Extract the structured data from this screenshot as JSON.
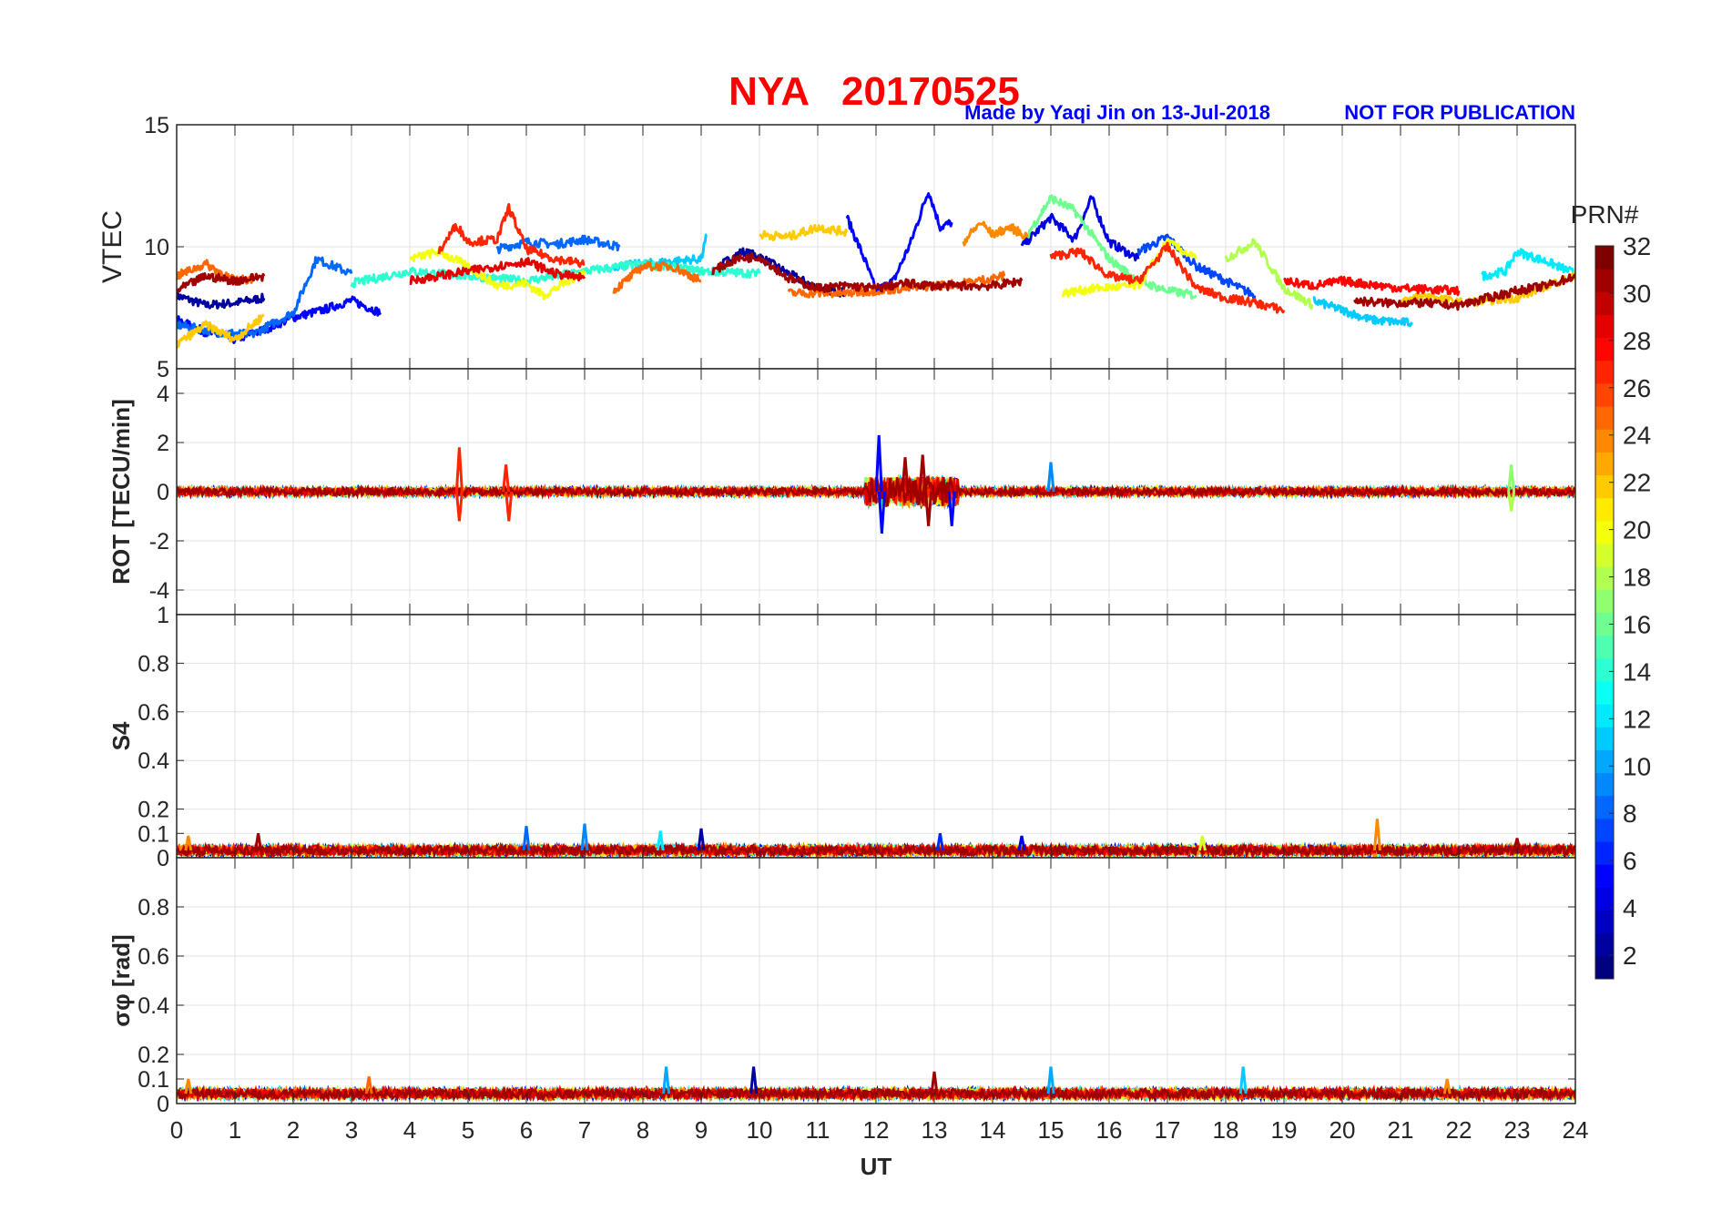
{
  "chart_data": {
    "type": "line",
    "title": "NYA   20170525",
    "credit": "Made by Yaqi Jin on 13-Jul-2018",
    "notice": "NOT FOR PUBLICATION",
    "xlabel": "UT",
    "xlim": [
      0,
      24
    ],
    "xticks": [
      "0",
      "1",
      "2",
      "3",
      "4",
      "5",
      "6",
      "7",
      "8",
      "9",
      "10",
      "11",
      "12",
      "13",
      "14",
      "15",
      "16",
      "17",
      "18",
      "19",
      "20",
      "21",
      "22",
      "23",
      "24"
    ],
    "grid": true,
    "colorbar": {
      "label": "PRN#",
      "range": [
        1,
        32
      ],
      "ticks": [
        "2",
        "4",
        "6",
        "8",
        "10",
        "12",
        "14",
        "16",
        "18",
        "20",
        "22",
        "24",
        "26",
        "28",
        "30",
        "32"
      ],
      "colormap": "jet",
      "levels": 32
    },
    "panels": [
      {
        "id": "vtec",
        "ylabel": "VTEC",
        "ylim": [
          5,
          15
        ],
        "yticks": [
          "5",
          "10",
          "15"
        ],
        "series": [
          {
            "prn": 2,
            "t": [
              0,
              0.5,
              1,
              1.5
            ],
            "v": [
              8.0,
              7.6,
              7.7,
              7.9
            ]
          },
          {
            "prn": 2,
            "t": [
              9.3,
              9.7,
              10,
              10.5,
              11,
              11.5
            ],
            "v": [
              9.2,
              9.8,
              9.6,
              8.9,
              8.3,
              8.1
            ]
          },
          {
            "prn": 5,
            "t": [
              0,
              0.5,
              1,
              1.5,
              2,
              2.5,
              3,
              3.5
            ],
            "v": [
              7.0,
              6.5,
              6.2,
              6.6,
              7.1,
              7.4,
              7.8,
              7.3
            ]
          },
          {
            "prn": 5,
            "t": [
              11.5,
              11.8,
              12,
              12.3,
              12.6,
              12.9,
              13.1,
              13.3
            ],
            "v": [
              11.2,
              9.5,
              8.2,
              8.6,
              10.2,
              12.3,
              10.8,
              11.0
            ]
          },
          {
            "prn": 4,
            "t": [
              14.5,
              15,
              15.4,
              15.7,
              16,
              16.5
            ],
            "v": [
              10.0,
              11.2,
              10.3,
              12.0,
              10.2,
              9.5
            ]
          },
          {
            "prn": 8,
            "t": [
              0,
              0.7,
              1.3,
              2,
              2.4,
              3
            ],
            "v": [
              6.8,
              6.5,
              6.4,
              7.3,
              9.5,
              8.9
            ]
          },
          {
            "prn": 8,
            "t": [
              5.5,
              6,
              6.5,
              7,
              7.6
            ],
            "v": [
              9.9,
              10.2,
              10.1,
              10.3,
              10.0
            ]
          },
          {
            "prn": 7,
            "t": [
              16.5,
              17,
              17.5,
              18,
              18.5
            ],
            "v": [
              9.8,
              10.4,
              9.2,
              8.6,
              8.0
            ]
          },
          {
            "prn": 11,
            "t": [
              7.5,
              8.5,
              9,
              9.1
            ],
            "v": [
              9.2,
              9.4,
              9.5,
              10.5
            ]
          },
          {
            "prn": 11,
            "t": [
              19.5,
              20,
              20.5,
              21,
              21.2
            ],
            "v": [
              7.8,
              7.4,
              7.0,
              6.9,
              6.9
            ]
          },
          {
            "prn": 12,
            "t": [
              22.4,
              22.8,
              23,
              23.5,
              24
            ],
            "v": [
              8.8,
              9.0,
              9.8,
              9.4,
              8.9
            ]
          },
          {
            "prn": 14,
            "t": [
              3,
              4,
              5,
              6,
              7,
              8,
              9,
              10
            ],
            "v": [
              8.5,
              9.0,
              8.8,
              8.6,
              9.0,
              9.3,
              9.0,
              8.9
            ]
          },
          {
            "prn": 16,
            "t": [
              14.6,
              15,
              15.4,
              16,
              16.5,
              17,
              17.5
            ],
            "v": [
              10.5,
              12.0,
              11.5,
              9.5,
              8.6,
              8.2,
              8.0
            ]
          },
          {
            "prn": 18,
            "t": [
              18,
              18.5,
              19,
              19.5
            ],
            "v": [
              9.5,
              10.2,
              8.3,
              7.6
            ]
          },
          {
            "prn": 20,
            "t": [
              4,
              4.5,
              5,
              5.5,
              6,
              6.3,
              7
            ],
            "v": [
              9.5,
              9.8,
              9.2,
              8.4,
              8.5,
              8.0,
              9.0
            ]
          },
          {
            "prn": 20,
            "t": [
              15.2,
              15.8,
              16.5,
              17,
              17.5
            ],
            "v": [
              8.1,
              8.3,
              8.4,
              10.2,
              9.5
            ]
          },
          {
            "prn": 22,
            "t": [
              0,
              0.5,
              1,
              1.5
            ],
            "v": [
              6.0,
              6.8,
              6.2,
              7.2
            ]
          },
          {
            "prn": 22,
            "t": [
              10,
              10.5,
              11,
              11.5
            ],
            "v": [
              10.5,
              10.4,
              10.8,
              10.6
            ]
          },
          {
            "prn": 22,
            "t": [
              21,
              21.5,
              22,
              22.5,
              23,
              23.5,
              24
            ],
            "v": [
              7.8,
              8.0,
              7.7,
              7.8,
              7.9,
              8.4,
              8.8
            ]
          },
          {
            "prn": 24,
            "t": [
              13.5,
              13.8,
              14,
              14.3,
              14.6
            ],
            "v": [
              10.2,
              11.0,
              10.5,
              10.8,
              10.4
            ]
          },
          {
            "prn": 25,
            "t": [
              0,
              0.5,
              1,
              1.3
            ],
            "v": [
              8.8,
              9.3,
              8.6,
              8.7
            ]
          },
          {
            "prn": 25,
            "t": [
              7.5,
              8,
              8.5,
              9
            ],
            "v": [
              8.2,
              9.2,
              9.2,
              8.6
            ]
          },
          {
            "prn": 25,
            "t": [
              10.5,
              11.5,
              12.5,
              13.5,
              14.2
            ],
            "v": [
              8.1,
              8.1,
              8.3,
              8.5,
              8.8
            ]
          },
          {
            "prn": 27,
            "t": [
              4.5,
              4.8,
              5,
              5.5,
              5.7,
              6,
              6.5,
              7
            ],
            "v": [
              9.8,
              10.9,
              10.2,
              10.3,
              11.6,
              9.9,
              9.5,
              9.3
            ]
          },
          {
            "prn": 27,
            "t": [
              15,
              15.5,
              16,
              16.5,
              17,
              17.5,
              18,
              18.5,
              19
            ],
            "v": [
              9.6,
              9.8,
              8.8,
              8.6,
              10.0,
              8.3,
              7.9,
              7.7,
              7.4
            ]
          },
          {
            "prn": 28,
            "t": [
              19,
              19.5,
              20,
              21,
              22
            ],
            "v": [
              8.6,
              8.4,
              8.6,
              8.3,
              8.2
            ]
          },
          {
            "prn": 29,
            "t": [
              4,
              4.5,
              5,
              5.5,
              6,
              6.5,
              7
            ],
            "v": [
              8.6,
              8.8,
              9.0,
              9.2,
              9.4,
              8.9,
              8.7
            ]
          },
          {
            "prn": 31,
            "t": [
              0,
              0.5,
              1,
              1.5
            ],
            "v": [
              8.2,
              8.8,
              8.6,
              8.8
            ]
          },
          {
            "prn": 31,
            "t": [
              9.2,
              9.6,
              10,
              10.5,
              11,
              11.5,
              12,
              12.5,
              13,
              13.5,
              14,
              14.5
            ],
            "v": [
              9.0,
              9.5,
              9.6,
              8.7,
              8.3,
              8.4,
              8.3,
              8.5,
              8.4,
              8.4,
              8.4,
              8.6
            ]
          },
          {
            "prn": 31,
            "t": [
              20.2,
              20.7,
              21.3,
              22,
              22.5,
              23,
              23.5,
              24
            ],
            "v": [
              7.8,
              7.7,
              7.7,
              7.6,
              7.9,
              8.2,
              8.4,
              8.8
            ]
          }
        ]
      },
      {
        "id": "rot",
        "ylabel": "ROT [TECU/min]",
        "ylim": [
          -5,
          5
        ],
        "yticks": [
          "-4",
          "-2",
          "0",
          "2",
          "4"
        ],
        "baseline_noise": 0.15,
        "spikes": [
          {
            "t": 4.85,
            "v": 1.8,
            "prn": 27
          },
          {
            "t": 4.85,
            "v": -1.2,
            "prn": 27
          },
          {
            "t": 5.65,
            "v": 1.1,
            "prn": 27
          },
          {
            "t": 5.7,
            "v": -1.2,
            "prn": 27
          },
          {
            "t": 12.05,
            "v": 2.3,
            "prn": 5
          },
          {
            "t": 12.1,
            "v": -1.7,
            "prn": 5
          },
          {
            "t": 12.5,
            "v": 1.4,
            "prn": 31
          },
          {
            "t": 12.8,
            "v": 1.5,
            "prn": 31
          },
          {
            "t": 12.9,
            "v": -1.4,
            "prn": 31
          },
          {
            "t": 13.3,
            "v": -1.4,
            "prn": 5
          },
          {
            "t": 15,
            "v": 1.2,
            "prn": 9
          },
          {
            "t": 22.9,
            "v": 1.1,
            "prn": 17
          },
          {
            "t": 22.9,
            "v": -0.8,
            "prn": 18
          }
        ]
      },
      {
        "id": "s4",
        "ylabel": "S4",
        "ylim": [
          0,
          1
        ],
        "yticks": [
          "0",
          "0.1",
          "0.2",
          "0.4",
          "0.6",
          "0.8",
          "1"
        ],
        "baseline": 0.03,
        "spikes": [
          {
            "t": 0.2,
            "v": 0.09,
            "prn": 24
          },
          {
            "t": 1.4,
            "v": 0.1,
            "prn": 31
          },
          {
            "t": 6.0,
            "v": 0.13,
            "prn": 8
          },
          {
            "t": 7.0,
            "v": 0.14,
            "prn": 9
          },
          {
            "t": 8.3,
            "v": 0.11,
            "prn": 12
          },
          {
            "t": 9.0,
            "v": 0.12,
            "prn": 2
          },
          {
            "t": 13.1,
            "v": 0.1,
            "prn": 6
          },
          {
            "t": 14.5,
            "v": 0.09,
            "prn": 4
          },
          {
            "t": 17.6,
            "v": 0.09,
            "prn": 19
          },
          {
            "t": 20.6,
            "v": 0.16,
            "prn": 24
          },
          {
            "t": 23.0,
            "v": 0.08,
            "prn": 31
          }
        ]
      },
      {
        "id": "sigma",
        "ylabel": "σφ [rad]",
        "ylim": [
          0,
          1
        ],
        "yticks": [
          "0",
          "0.1",
          "0.2",
          "0.4",
          "0.6",
          "0.8"
        ],
        "baseline": 0.04,
        "spikes": [
          {
            "t": 0.2,
            "v": 0.1,
            "prn": 24
          },
          {
            "t": 3.3,
            "v": 0.11,
            "prn": 25
          },
          {
            "t": 8.4,
            "v": 0.15,
            "prn": 10
          },
          {
            "t": 9.9,
            "v": 0.15,
            "prn": 2
          },
          {
            "t": 13.0,
            "v": 0.13,
            "prn": 31
          },
          {
            "t": 15.0,
            "v": 0.15,
            "prn": 10
          },
          {
            "t": 18.3,
            "v": 0.15,
            "prn": 11
          },
          {
            "t": 21.8,
            "v": 0.1,
            "prn": 24
          }
        ]
      }
    ]
  }
}
